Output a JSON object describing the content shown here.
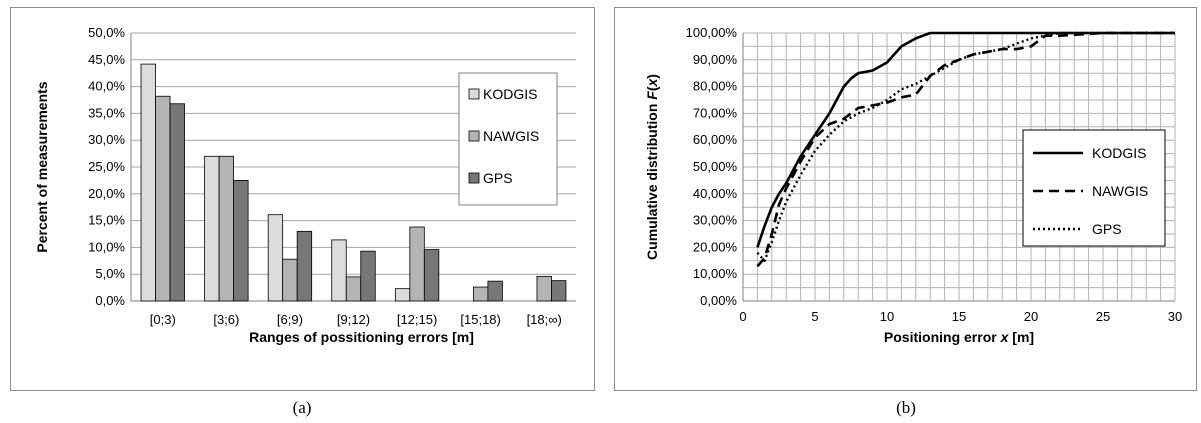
{
  "captions": {
    "a": "(a)",
    "b": "(b)"
  },
  "colors": {
    "KODGIS_bar": "#dcdcdc",
    "NAWGIS_bar": "#b4b4b4",
    "GPS_bar": "#777777",
    "grid": "#a6a6a6",
    "line": "#000000"
  },
  "chart_data": [
    {
      "type": "bar",
      "xlabel": "Ranges of possitioning errors [m]",
      "ylabel": "Percent of measurements",
      "categories": [
        "[0;3)",
        "[3;6)",
        "[6;9)",
        "[9;12)",
        "[12;15)",
        "[15;18)",
        "[18;∞)"
      ],
      "series": [
        {
          "name": "KODGIS",
          "values": [
            44.2,
            27.0,
            16.1,
            11.4,
            2.3,
            0,
            0
          ]
        },
        {
          "name": "NAWGIS",
          "values": [
            38.2,
            27.0,
            7.8,
            4.5,
            13.8,
            2.6,
            4.6
          ]
        },
        {
          "name": "GPS",
          "values": [
            36.8,
            22.5,
            13.0,
            9.3,
            9.6,
            3.7,
            3.8
          ]
        }
      ],
      "ylim": [
        0,
        50
      ],
      "yticks": [
        "0,0%",
        "5,0%",
        "10,0%",
        "15,0%",
        "20,0%",
        "25,0%",
        "30,0%",
        "35,0%",
        "40,0%",
        "45,0%",
        "50,0%"
      ],
      "grid": "horizontal",
      "legend": "right"
    },
    {
      "type": "line",
      "xlabel_prefix": "Positioning error ",
      "xlabel_var": "x",
      "xlabel_suffix": " [m]",
      "ylabel_prefix": "Cumulative distribution ",
      "ylabel_var": "F",
      "ylabel_paren_open": "(",
      "ylabel_paren_var": "x",
      "ylabel_paren_close": ")",
      "xlim": [
        0,
        30
      ],
      "xticks": [
        "0",
        "5",
        "10",
        "15",
        "20",
        "25",
        "30"
      ],
      "ylim": [
        0,
        100
      ],
      "yticks": [
        "0,00%",
        "10,00%",
        "20,00%",
        "30,00%",
        "40,00%",
        "50,00%",
        "60,00%",
        "70,00%",
        "80,00%",
        "90,00%",
        "100,00%"
      ],
      "grid": "both",
      "legend": "right",
      "series": [
        {
          "name": "KODGIS",
          "style": "solid",
          "x": [
            1,
            1.5,
            2,
            2.5,
            3,
            3.5,
            4,
            5,
            6,
            6.5,
            7,
            7.5,
            8,
            9,
            10,
            10.5,
            11,
            12,
            12.5,
            13,
            14,
            16,
            20,
            25,
            30
          ],
          "y": [
            20,
            28,
            35,
            40,
            44,
            49,
            54,
            62,
            70,
            75,
            80,
            83,
            85,
            86,
            89,
            92,
            95,
            98,
            99,
            100,
            100,
            100,
            100,
            100,
            100
          ]
        },
        {
          "name": "NAWGIS",
          "style": "dashed",
          "x": [
            1,
            1.5,
            2,
            2.5,
            3,
            4,
            5,
            6,
            7,
            8,
            9,
            10,
            11,
            12,
            13,
            14,
            15,
            16,
            17,
            18,
            19,
            20,
            21,
            22,
            25,
            30
          ],
          "y": [
            13,
            16,
            25,
            36,
            42,
            52,
            61,
            66,
            68,
            72,
            73,
            74,
            76,
            77,
            84,
            88,
            90,
            92,
            93,
            94,
            94,
            95,
            99,
            99,
            100,
            100
          ]
        },
        {
          "name": "GPS",
          "style": "dotted",
          "x": [
            1,
            1.5,
            2,
            2.5,
            3,
            4,
            5,
            6,
            7,
            8,
            9,
            10,
            11,
            12,
            13,
            14,
            15,
            16,
            17,
            18,
            19,
            20,
            21,
            22,
            25,
            30
          ],
          "y": [
            18,
            15,
            22,
            30,
            37,
            47,
            56,
            62,
            67,
            70,
            72,
            75,
            79,
            81,
            84,
            87,
            90,
            92,
            93,
            94,
            96,
            98,
            99,
            100,
            100,
            100
          ]
        }
      ]
    }
  ]
}
